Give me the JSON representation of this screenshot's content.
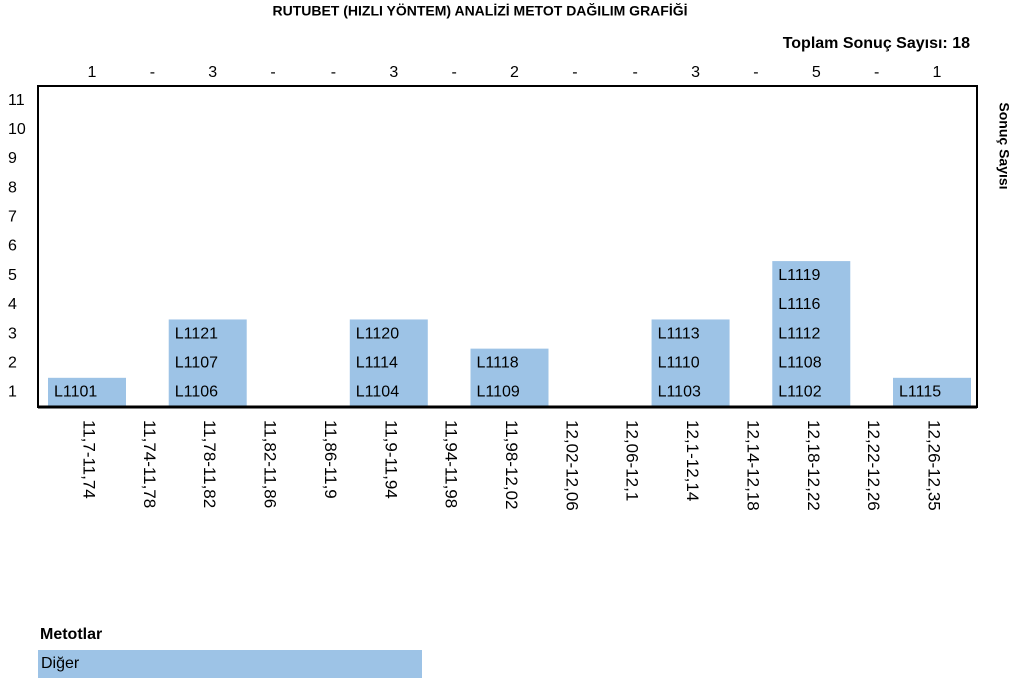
{
  "chart_data": {
    "type": "cell-stack",
    "title": "RUTUBET (HIZLI YÖNTEM) ANALİZİ METOT DAĞILIM GRAFİĞİ",
    "total_label": "Toplam Sonuç Sayısı: 18",
    "y_axis_label": "Sonuç Sayısı",
    "categories": [
      "11,7-11,74",
      "11,74-11,78",
      "11,78-11,82",
      "11,82-11,86",
      "11,86-11,9",
      "11,9-11,94",
      "11,94-11,98",
      "11,98-12,02",
      "12,02-12,06",
      "12,06-12,1",
      "12,1-12,14",
      "12,14-12,18",
      "12,18-12,22",
      "12,22-12,26",
      "12,26-12,35"
    ],
    "values": [
      1,
      0,
      3,
      0,
      0,
      3,
      0,
      2,
      0,
      0,
      3,
      0,
      5,
      0,
      1
    ],
    "value_labels": [
      "1",
      "-",
      "3",
      "-",
      "-",
      "3",
      "-",
      "2",
      "-",
      "-",
      "3",
      "-",
      "5",
      "-",
      "1"
    ],
    "cells": [
      [
        "L1101"
      ],
      [],
      [
        "L1106",
        "L1107",
        "L1121"
      ],
      [],
      [],
      [
        "L1104",
        "L1114",
        "L1120"
      ],
      [],
      [
        "L1109",
        "L1118"
      ],
      [],
      [],
      [
        "L1103",
        "L1110",
        "L1113"
      ],
      [],
      [
        "L1102",
        "L1108",
        "L1112",
        "L1116",
        "L1119"
      ],
      [],
      [
        "L1115"
      ]
    ],
    "color": "#9dc3e6",
    "ylim": [
      0.5,
      11.5
    ],
    "yticks": [
      1,
      2,
      3,
      4,
      5,
      6,
      7,
      8,
      9,
      10,
      11
    ],
    "legend": {
      "title": "Metotlar",
      "items": [
        {
          "name": "Diğer",
          "color": "#9dc3e6"
        }
      ]
    }
  }
}
